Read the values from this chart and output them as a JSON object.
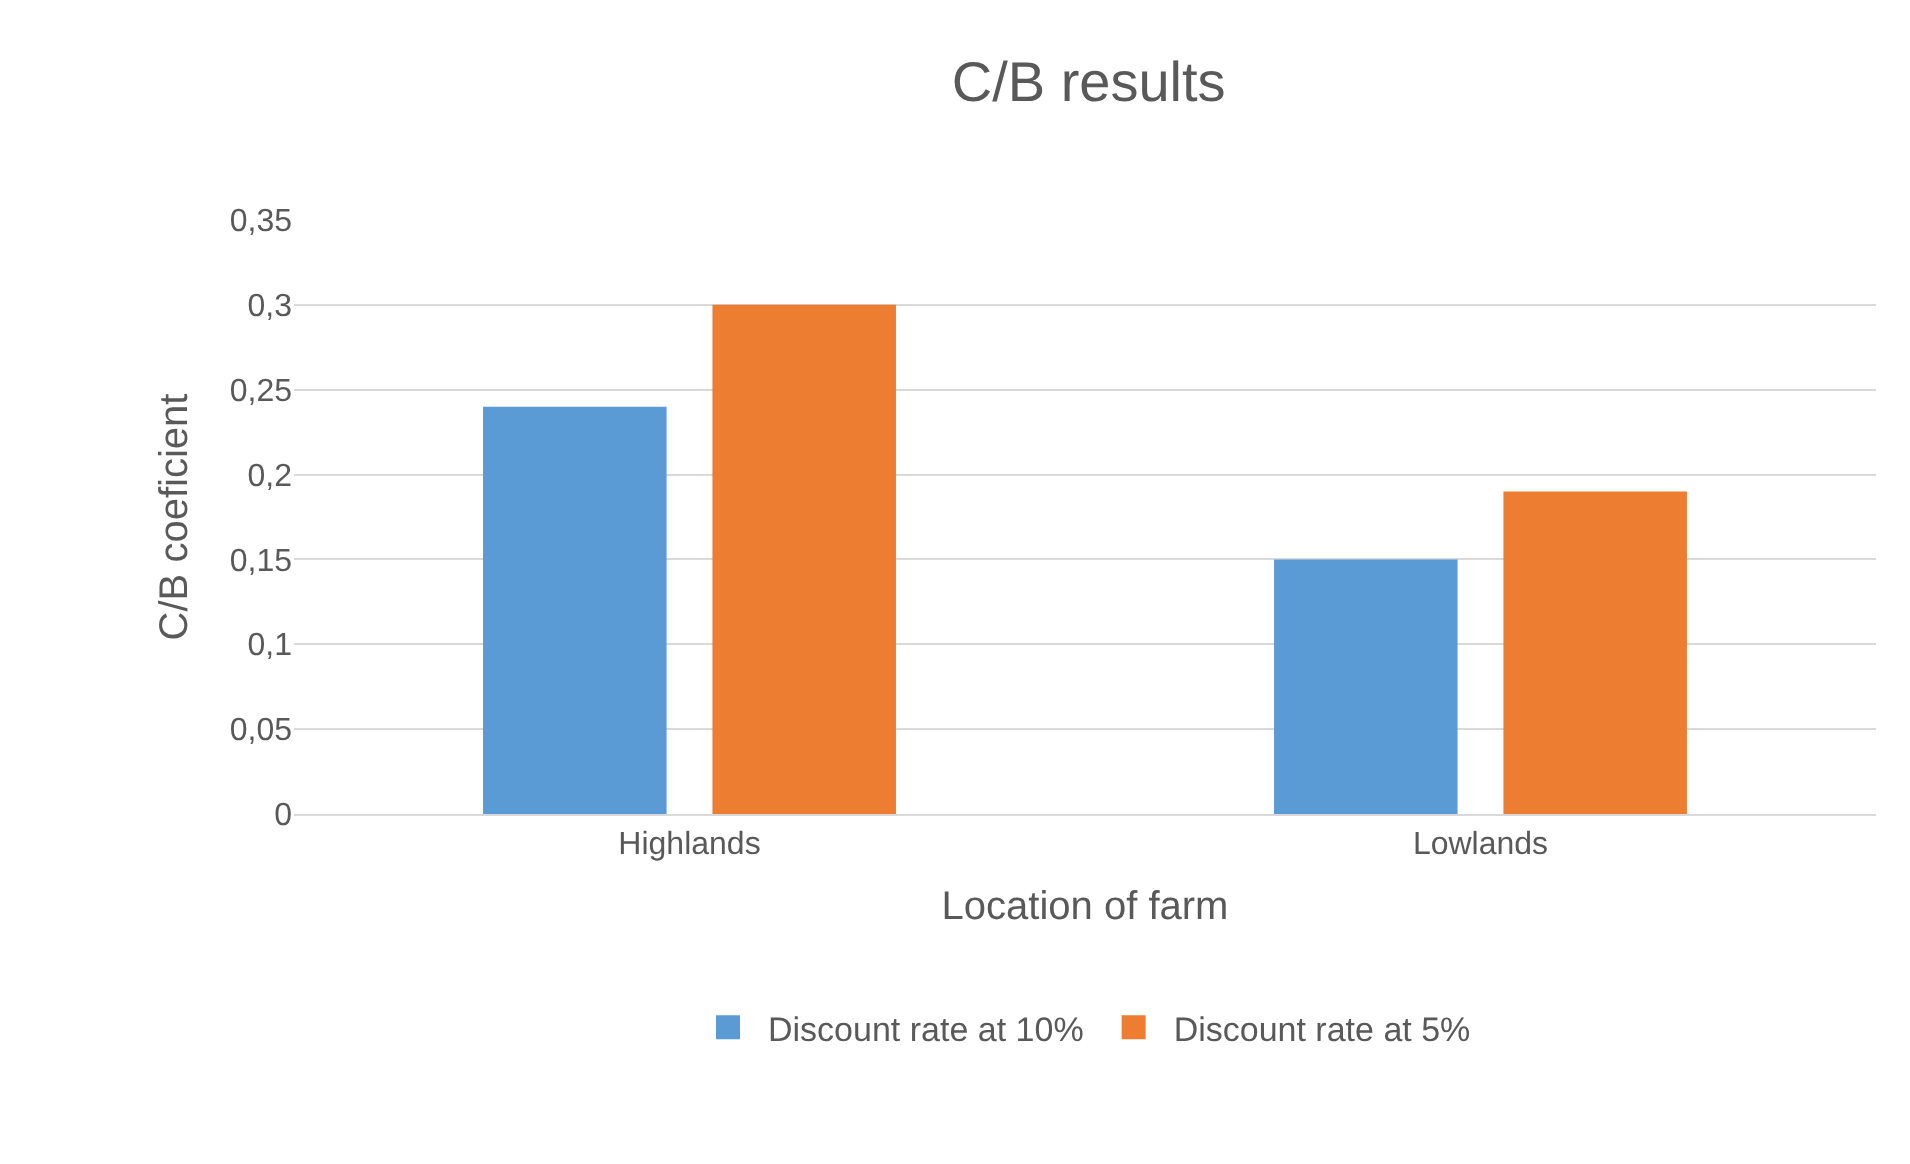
{
  "chart_data": {
    "type": "bar",
    "title": "C/B results",
    "xlabel": "Location of farm",
    "ylabel": "C/B coeficient",
    "categories": [
      "Highlands",
      "Lowlands"
    ],
    "series": [
      {
        "name": "Discount rate at 10%",
        "color": "#5b9bd5",
        "values": [
          0.24,
          0.15
        ]
      },
      {
        "name": "Discount rate at 5%",
        "color": "#ed7d31",
        "values": [
          0.3,
          0.19
        ]
      }
    ],
    "ylim": [
      0,
      0.35
    ],
    "yticks": [
      0,
      {
        "value": 0.05,
        "label": "0,05"
      },
      {
        "value": 0.1,
        "label": "0,1"
      },
      {
        "value": 0.15,
        "label": "0,15"
      },
      {
        "value": 0.2,
        "label": "0,2"
      },
      {
        "value": 0.25,
        "label": "0,25"
      },
      {
        "value": 0.3,
        "label": "0,3"
      },
      {
        "value": 0.35,
        "label": "0,35"
      }
    ],
    "grid": "y",
    "legend": "bottom"
  }
}
